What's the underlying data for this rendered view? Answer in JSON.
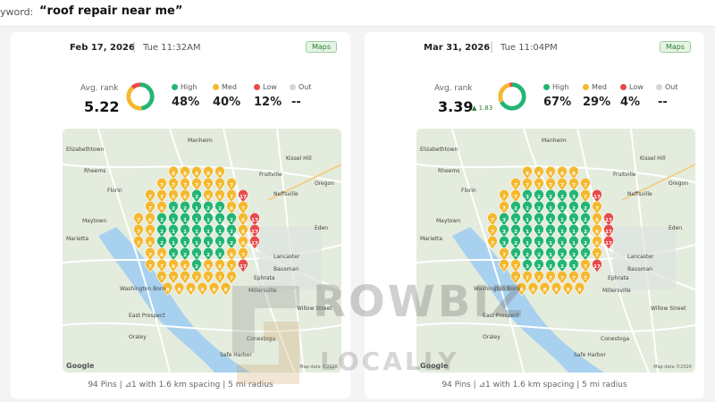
{
  "header": {
    "keyword_label": "yword:",
    "keyword_value": "“roof repair near me”"
  },
  "colors": {
    "high": "#22b573",
    "med": "#f5b82e",
    "low": "#e84b4b",
    "out": "#d6d6d6",
    "maps_badge": "#2e7d32"
  },
  "reports": [
    {
      "date": "Feb 17, 2026",
      "time": "Tue 11:32AM",
      "badge": "Maps",
      "avg_rank_label": "Avg. rank",
      "avg_rank": "5.22",
      "delta": "",
      "legend": [
        {
          "label": "High",
          "pct": "48%",
          "share": 48
        },
        {
          "label": "Med",
          "pct": "40%",
          "share": 40
        },
        {
          "label": "Low",
          "pct": "12%",
          "share": 12
        },
        {
          "label": "Out",
          "pct": "--",
          "share": 0
        }
      ],
      "footer": "94 Pins | ⊿1 with 1.6 km spacing | 5 mi radius"
    },
    {
      "date": "Mar 31, 2026",
      "time": "Tue 11:04PM",
      "badge": "Maps",
      "avg_rank_label": "Avg. rank",
      "avg_rank": "3.39",
      "delta": "▲ 1.83",
      "legend": [
        {
          "label": "High",
          "pct": "67%",
          "share": 67
        },
        {
          "label": "Med",
          "pct": "29%",
          "share": 29
        },
        {
          "label": "Low",
          "pct": "4%",
          "share": 4
        },
        {
          "label": "Out",
          "pct": "--",
          "share": 0
        }
      ],
      "footer": "94 Pins | ⊿1 with 1.6 km spacing | 5 mi radius"
    }
  ],
  "map_labels": [
    "Elizabethtown",
    "Manheim",
    "Kissel Hill",
    "Rheems",
    "Florin",
    "Fruitville",
    "Neffsville",
    "Oregon",
    "Maytown",
    "Eden",
    "Marietta",
    "Lancaster",
    "Ephrata",
    "Bausman",
    "Millersville",
    "Willow Street",
    "East Prospect",
    "Conestoga",
    "Oraley",
    "Safe Harbor",
    "Washington Boro"
  ],
  "map_attribution": "Map data ©2026",
  "google_label": "Google",
  "watermark": {
    "line1": "ROWBIZ",
    "line2": "LOCALLY"
  }
}
